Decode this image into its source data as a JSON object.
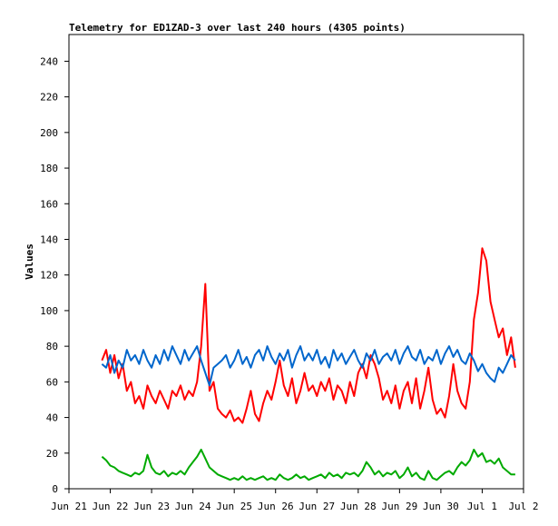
{
  "chart_data": {
    "type": "line",
    "title": "Telemetry for ED1ZAD-3 over last 240 hours (4305 points)",
    "y_label": "Values",
    "x": [
      0.8,
      0.9,
      1,
      1.1,
      1.2,
      1.3,
      1.4,
      1.5,
      1.6,
      1.7,
      1.8,
      1.9,
      2,
      2.1,
      2.2,
      2.3,
      2.4,
      2.5,
      2.6,
      2.7,
      2.8,
      2.9,
      3,
      3.1,
      3.2,
      3.3,
      3.4,
      3.5,
      3.6,
      3.7,
      3.8,
      3.9,
      4,
      4.1,
      4.2,
      4.3,
      4.4,
      4.5,
      4.6,
      4.7,
      4.8,
      4.9,
      5,
      5.1,
      5.2,
      5.3,
      5.4,
      5.5,
      5.6,
      5.7,
      5.8,
      5.9,
      6,
      6.1,
      6.2,
      6.3,
      6.4,
      6.5,
      6.6,
      6.7,
      6.8,
      6.9,
      7,
      7.1,
      7.2,
      7.3,
      7.4,
      7.5,
      7.6,
      7.7,
      7.8,
      7.9,
      8,
      8.1,
      8.2,
      8.3,
      8.4,
      8.5,
      8.6,
      8.7,
      8.8,
      8.9,
      9,
      9.1,
      9.2,
      9.3,
      9.4,
      9.5,
      9.6,
      9.7,
      9.8,
      9.9,
      10,
      10.1,
      10.2,
      10.3,
      10.4,
      10.5,
      10.6,
      10.7,
      10.8
    ],
    "series": [
      {
        "color": "#ff0000",
        "values": [
          72,
          78,
          65,
          75,
          62,
          70,
          55,
          60,
          48,
          52,
          45,
          58,
          52,
          48,
          55,
          50,
          45,
          55,
          52,
          58,
          50,
          55,
          52,
          60,
          80,
          115,
          55,
          60,
          45,
          42,
          40,
          44,
          38,
          40,
          37,
          45,
          55,
          42,
          38,
          48,
          55,
          50,
          60,
          72,
          58,
          52,
          62,
          48,
          55,
          65,
          55,
          58,
          52,
          60,
          55,
          62,
          50,
          58,
          55,
          48,
          60,
          52,
          65,
          70,
          62,
          75,
          70,
          62,
          50,
          55,
          48,
          58,
          45,
          55,
          60,
          48,
          62,
          45,
          55,
          68,
          50,
          42,
          45,
          40,
          52,
          70,
          55,
          48,
          45,
          60,
          95,
          110,
          135,
          128,
          105,
          95,
          85,
          90,
          75,
          85,
          68
        ]
      },
      {
        "color": "#0066cc",
        "values": [
          70,
          68,
          75,
          65,
          72,
          68,
          78,
          72,
          75,
          70,
          78,
          72,
          68,
          75,
          70,
          78,
          72,
          80,
          75,
          70,
          78,
          72,
          76,
          80,
          72,
          65,
          58,
          68,
          70,
          72,
          75,
          68,
          72,
          78,
          70,
          74,
          68,
          75,
          78,
          72,
          80,
          74,
          70,
          76,
          72,
          78,
          68,
          75,
          80,
          72,
          76,
          72,
          78,
          70,
          74,
          68,
          78,
          72,
          76,
          70,
          74,
          78,
          72,
          68,
          76,
          72,
          78,
          70,
          74,
          76,
          72,
          78,
          70,
          76,
          80,
          74,
          72,
          78,
          70,
          74,
          72,
          78,
          70,
          76,
          80,
          74,
          78,
          72,
          70,
          76,
          72,
          66,
          70,
          65,
          62,
          60,
          68,
          65,
          70,
          75,
          72
        ]
      },
      {
        "color": "#00aa00",
        "values": [
          18,
          16,
          13,
          12,
          10,
          9,
          8,
          7,
          9,
          8,
          10,
          19,
          12,
          9,
          8,
          10,
          7,
          9,
          8,
          10,
          8,
          12,
          15,
          18,
          22,
          17,
          12,
          10,
          8,
          7,
          6,
          5,
          6,
          5,
          7,
          5,
          6,
          5,
          6,
          7,
          5,
          6,
          5,
          8,
          6,
          5,
          6,
          8,
          6,
          7,
          5,
          6,
          7,
          8,
          6,
          9,
          7,
          8,
          6,
          9,
          8,
          9,
          7,
          10,
          15,
          12,
          8,
          10,
          7,
          9,
          8,
          10,
          6,
          8,
          12,
          7,
          9,
          6,
          5,
          10,
          6,
          5,
          7,
          9,
          10,
          8,
          12,
          15,
          13,
          16,
          22,
          18,
          20,
          15,
          16,
          14,
          17,
          12,
          10,
          8,
          8
        ]
      }
    ],
    "xlim": [
      0,
      11
    ],
    "xticks": [
      {
        "value": 0,
        "label": "Jun 21"
      },
      {
        "value": 1,
        "label": "Jun 22"
      },
      {
        "value": 2,
        "label": "Jun 23"
      },
      {
        "value": 3,
        "label": "Jun 24"
      },
      {
        "value": 4,
        "label": "Jun 25"
      },
      {
        "value": 5,
        "label": "Jun 26"
      },
      {
        "value": 6,
        "label": "Jun 27"
      },
      {
        "value": 7,
        "label": "Jun 28"
      },
      {
        "value": 8,
        "label": "Jun 29"
      },
      {
        "value": 9,
        "label": "Jun 30"
      },
      {
        "value": 10,
        "label": "Jul 1"
      },
      {
        "value": 11,
        "label": "Jul 2"
      }
    ],
    "ylim": [
      0,
      255
    ],
    "yticks": [
      0,
      20,
      40,
      60,
      80,
      100,
      120,
      140,
      160,
      180,
      200,
      220,
      240
    ]
  }
}
